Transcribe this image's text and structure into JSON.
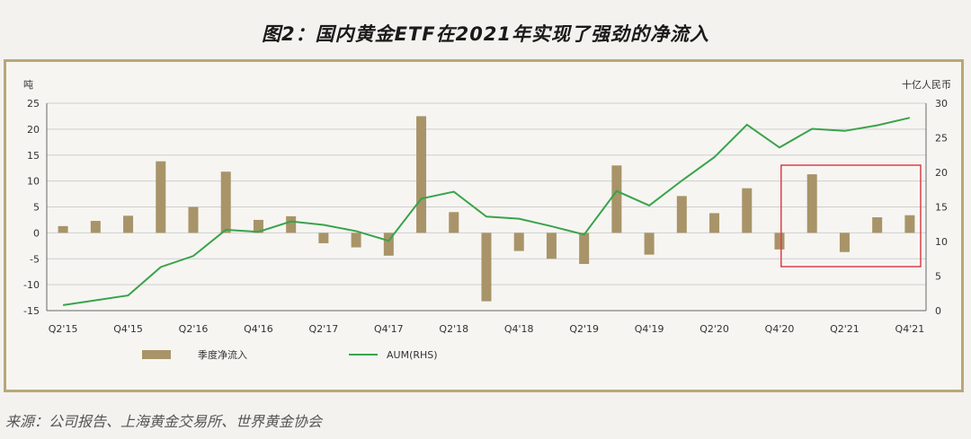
{
  "title": "图2：国内黄金ETF在2021年实现了强劲的净流入",
  "source": "来源：公司报告、上海黄金交易所、世界黄金协会",
  "colors": {
    "bar": "#a89468",
    "line": "#3aa34a",
    "highlight": "#d9404a",
    "grid": "#cfcfcf",
    "frame": "#b9a778"
  },
  "chart_data": {
    "type": "bar+line",
    "left_axis_label": "吨",
    "right_axis_label": "十亿人民币",
    "left_ylim": [
      -15,
      25
    ],
    "left_ticks": [
      25,
      20,
      15,
      10,
      5,
      0,
      -5,
      -10,
      -15
    ],
    "right_ylim": [
      0,
      30
    ],
    "right_ticks": [
      30,
      25,
      20,
      15,
      10,
      5,
      0
    ],
    "x_tick_labels": [
      "Q2'15",
      "Q4'15",
      "Q2'16",
      "Q4'16",
      "Q2'17",
      "Q4'17",
      "Q2'18",
      "Q4'18",
      "Q2'19",
      "Q4'19",
      "Q2'20",
      "Q4'20",
      "Q2'21",
      "Q4'21"
    ],
    "categories": [
      "Q2'15",
      "Q3'15",
      "Q4'15",
      "Q1'16",
      "Q2'16",
      "Q3'16",
      "Q4'16",
      "Q1'17",
      "Q2'17",
      "Q3'17",
      "Q4'17",
      "Q1'18",
      "Q2'18",
      "Q3'18",
      "Q4'18",
      "Q1'19",
      "Q2'19",
      "Q3'19",
      "Q4'19",
      "Q1'20",
      "Q2'20",
      "Q3'20",
      "Q4'20",
      "Q1'21",
      "Q2'21",
      "Q3'21",
      "Q4'21"
    ],
    "grid": "horizontal",
    "series": [
      {
        "name": "季度净流入",
        "type": "bar",
        "axis": "left",
        "values": [
          1.3,
          2.3,
          3.3,
          13.8,
          5.0,
          11.8,
          2.5,
          3.2,
          -2.0,
          -2.8,
          -4.4,
          22.5,
          4.0,
          -13.2,
          -3.5,
          -5.0,
          -6.0,
          13.0,
          -4.2,
          7.1,
          3.8,
          8.6,
          -3.2,
          11.3,
          -3.7,
          3.0,
          3.4
        ]
      },
      {
        "name": "AUM(RHS)",
        "type": "line",
        "axis": "right",
        "values": [
          0.8,
          1.5,
          2.2,
          6.3,
          7.9,
          11.7,
          11.4,
          12.9,
          12.4,
          11.5,
          10.1,
          16.2,
          17.2,
          13.6,
          13.3,
          12.2,
          11.0,
          17.3,
          15.2,
          18.8,
          22.2,
          26.9,
          23.6,
          26.3,
          26.0,
          26.8,
          27.9
        ]
      }
    ],
    "highlight_range": [
      "Q4'20",
      "Q4'21"
    ]
  }
}
